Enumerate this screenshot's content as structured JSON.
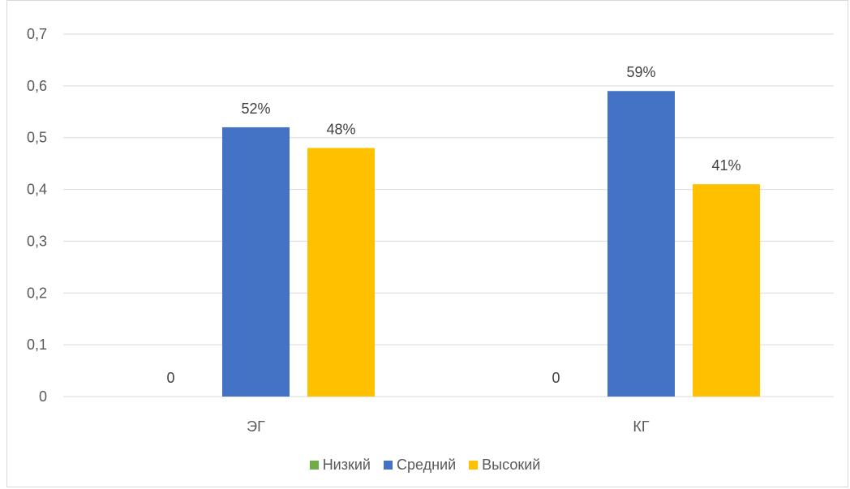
{
  "chart_data": {
    "type": "bar",
    "categories": [
      "ЭГ",
      "КГ"
    ],
    "series": [
      {
        "name": "Низкий",
        "values": [
          0,
          0
        ],
        "labels": [
          "0",
          "0"
        ],
        "color": "#70AD47"
      },
      {
        "name": "Средний",
        "values": [
          0.52,
          0.59
        ],
        "labels": [
          "52%",
          "59%"
        ],
        "color": "#4472C4"
      },
      {
        "name": "Высокий",
        "values": [
          0.48,
          0.41
        ],
        "labels": [
          "48%",
          "41%"
        ],
        "color": "#FFC000"
      }
    ],
    "ylim": [
      0,
      0.7
    ],
    "yticks": [
      0,
      0.1,
      0.2,
      0.3,
      0.4,
      0.5,
      0.6,
      0.7
    ],
    "ytick_labels": [
      "0",
      "0,1",
      "0,2",
      "0,3",
      "0,4",
      "0,5",
      "0,6",
      "0,7"
    ],
    "grid": true,
    "legend_position": "bottom",
    "title": "",
    "xlabel": "",
    "ylabel": ""
  }
}
